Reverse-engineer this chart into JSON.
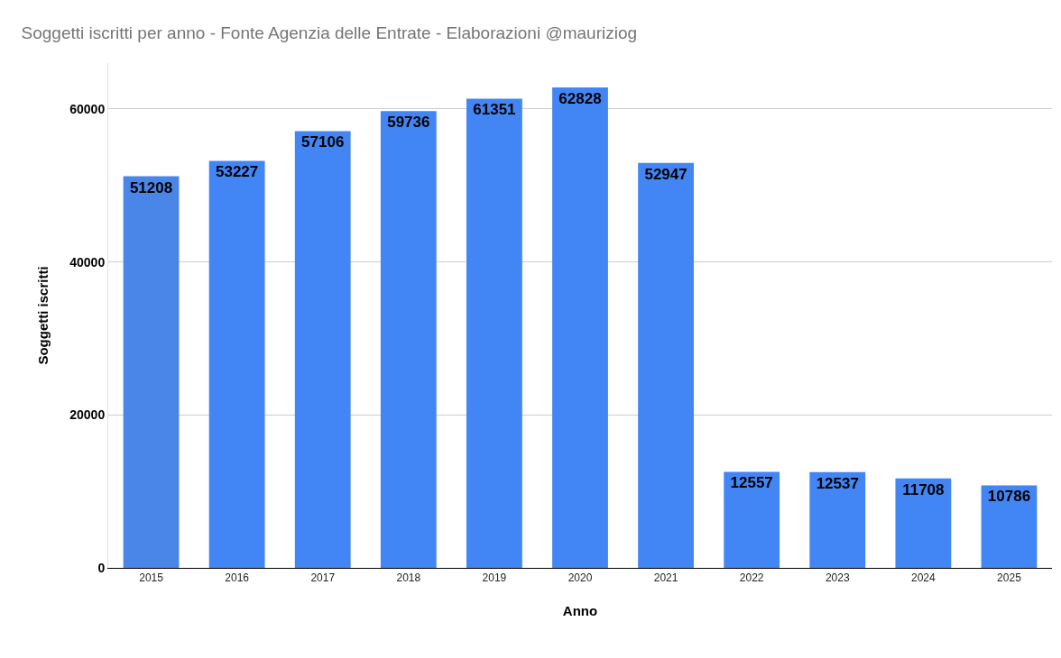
{
  "chart_data": {
    "type": "bar",
    "title": "Soggetti iscritti per anno - Fonte Agenzia delle Entrate - Elaborazioni @mauriziog",
    "xlabel": "Anno",
    "ylabel": "Soggetti iscritti",
    "categories": [
      "2015",
      "2016",
      "2017",
      "2018",
      "2019",
      "2020",
      "2021",
      "2022",
      "2023",
      "2024",
      "2025"
    ],
    "values": [
      51208,
      53227,
      57106,
      59736,
      61351,
      62828,
      52947,
      12557,
      12537,
      11708,
      10786
    ],
    "colors": [
      "#4a86e8",
      "#4285f4",
      "#4285f4",
      "#4285f4",
      "#4285f4",
      "#4285f4",
      "#4285f4",
      "#4285f4",
      "#4285f4",
      "#4285f4",
      "#4285f4"
    ],
    "ylim": [
      0,
      66000
    ],
    "yticks": [
      0,
      20000,
      40000,
      60000
    ],
    "grid": "y",
    "data_labels": true,
    "legend": false
  }
}
